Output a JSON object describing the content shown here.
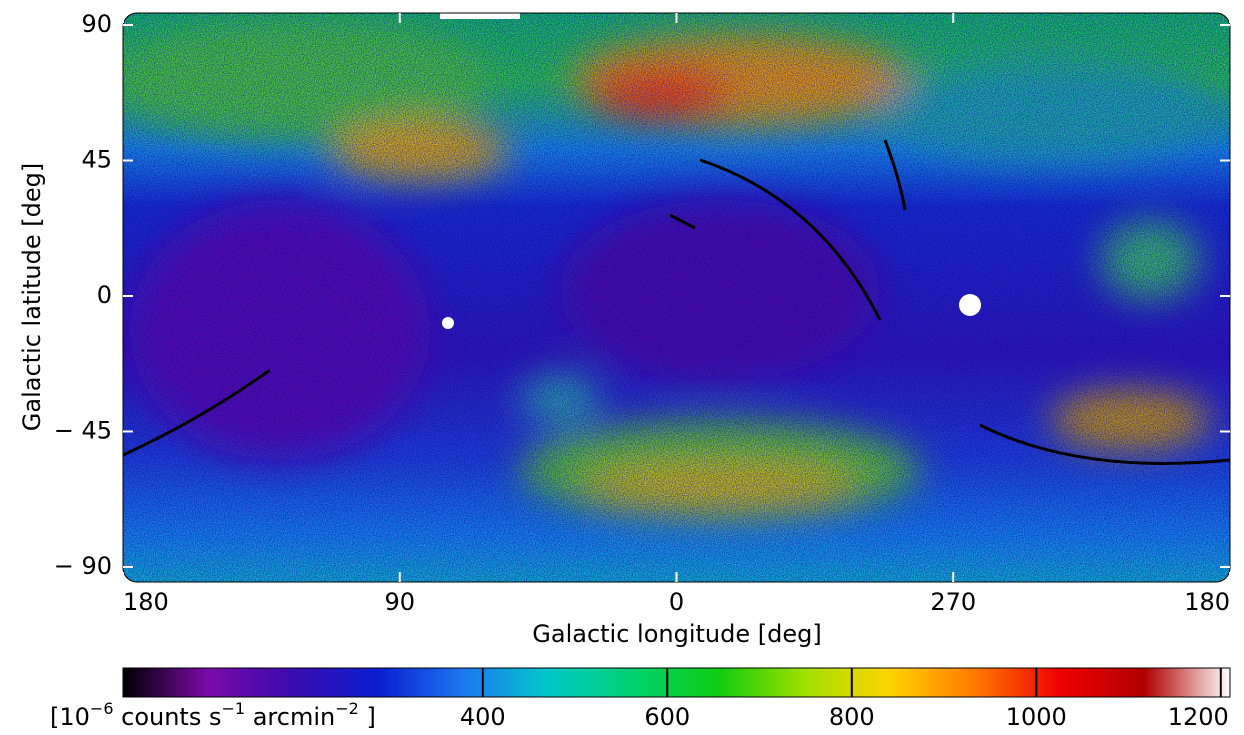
{
  "chart_data": {
    "type": "heatmap",
    "xlabel": "Galactic longitude [deg]",
    "ylabel": "Galactic latitude [deg]",
    "xlim": [
      180,
      -180
    ],
    "xticks": [
      180,
      90,
      0,
      {
        "value": -90,
        "label": "270"
      },
      {
        "value": -180,
        "label": "180"
      }
    ],
    "ylim": [
      -95,
      94
    ],
    "yticks": [
      90,
      45,
      0,
      {
        "value": -45,
        "label": "− 45"
      },
      {
        "value": -90,
        "label": "− 90"
      }
    ],
    "colorbar": {
      "label": [
        "[10",
        "−6",
        " counts s",
        "−1",
        " arcmin",
        "−2",
        " ]"
      ],
      "clim": [
        10,
        1210
      ],
      "ticks": [
        400,
        600,
        800,
        1000,
        1200
      ],
      "colormap": [
        "#000000",
        "#7a0aa8",
        "#3a0bb0",
        "#0a1ed0",
        "#1e78f0",
        "#00c8c8",
        "#00d26e",
        "#10cc10",
        "#a0e000",
        "#ffd400",
        "#ff7a00",
        "#f00000",
        "#b00000",
        "#ffffff"
      ]
    }
  }
}
